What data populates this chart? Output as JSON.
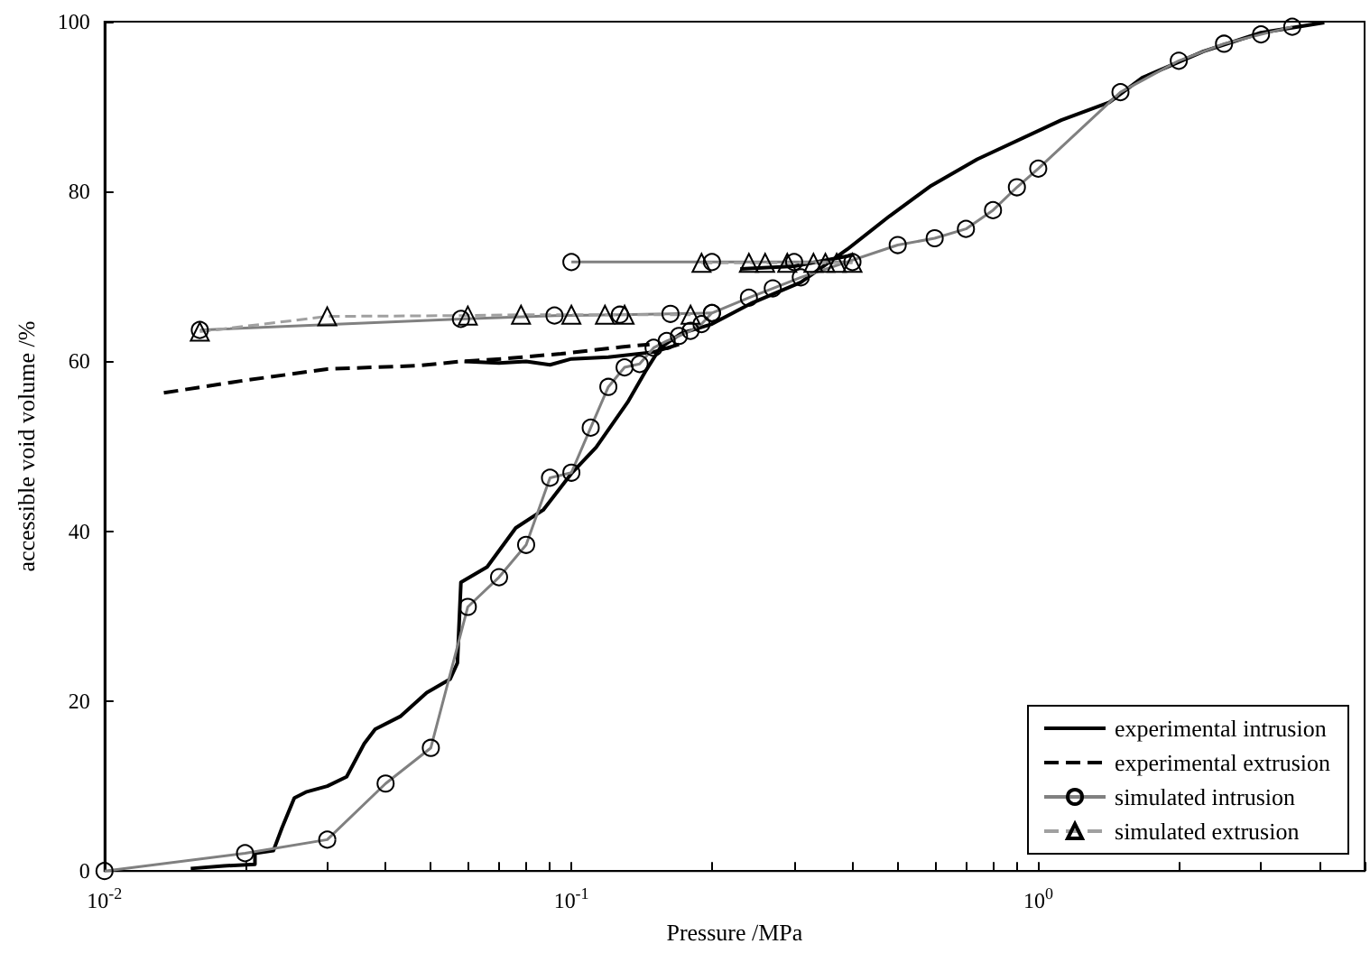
{
  "chart_data": {
    "type": "line",
    "xlabel": "Pressure /MPa",
    "ylabel": "accessible void volume /%",
    "log": "x",
    "grid": false,
    "legend": "bottom right",
    "xlim": [
      0.01,
      5
    ],
    "ylim": [
      0,
      100
    ],
    "xticks": [
      {
        "value": 0.01,
        "label": "10$^{-2}$"
      },
      {
        "value": 0.02,
        "label": null
      },
      {
        "value": 0.03,
        "label": null
      },
      {
        "value": 0.04,
        "label": null
      },
      {
        "value": 0.05,
        "label": null
      },
      {
        "value": 0.06,
        "label": null
      },
      {
        "value": 0.07,
        "label": null
      },
      {
        "value": 0.08,
        "label": null
      },
      {
        "value": 0.09,
        "label": null
      },
      {
        "value": 0.1,
        "label": "10$^{-1}$"
      },
      {
        "value": 0.2,
        "label": null
      },
      {
        "value": 0.3,
        "label": null
      },
      {
        "value": 0.4,
        "label": null
      },
      {
        "value": 0.5,
        "label": null
      },
      {
        "value": 0.6,
        "label": null
      },
      {
        "value": 0.7,
        "label": null
      },
      {
        "value": 0.8,
        "label": null
      },
      {
        "value": 0.9,
        "label": null
      },
      {
        "value": 1,
        "label": "10$^{0}$"
      },
      {
        "value": 2,
        "label": null
      },
      {
        "value": 3,
        "label": null
      },
      {
        "value": 4,
        "label": null
      },
      {
        "value": 5,
        "label": null
      }
    ],
    "yticks": [
      0,
      20,
      40,
      60,
      80,
      100
    ],
    "series": [
      {
        "name": "experimental intrusion",
        "color": "#000000",
        "marker": "none",
        "line_style": "solid",
        "x": [
          0.0153,
          0.018,
          0.021,
          0.021,
          0.023,
          0.024,
          0.0255,
          0.027,
          0.03,
          0.033,
          0.036,
          0.038,
          0.043,
          0.049,
          0.055,
          0.057,
          0.058,
          0.066,
          0.076,
          0.087,
          0.1,
          0.113,
          0.132,
          0.144,
          0.155,
          0.172,
          0.2,
          0.244,
          0.31,
          0.39,
          0.48,
          0.59,
          0.74,
          1.12,
          1.42,
          1.67,
          2.26,
          3.0,
          4.1,
          null,
          0.059,
          0.07,
          0.08,
          0.09,
          0.1,
          0.12,
          0.15,
          0.17,
          null,
          0.23,
          0.3,
          0.4
        ],
        "values": [
          0.3,
          0.6,
          0.8,
          2.1,
          2.4,
          5.1,
          8.6,
          9.3,
          10.0,
          11.1,
          15.0,
          16.7,
          18.2,
          21.0,
          22.6,
          24.5,
          34.0,
          35.8,
          40.4,
          42.5,
          46.8,
          49.9,
          55.2,
          58.8,
          61.6,
          63.3,
          64.4,
          66.9,
          69.3,
          73.2,
          77.1,
          80.7,
          83.8,
          88.4,
          90.5,
          93.4,
          96.5,
          98.7,
          99.9,
          null,
          60.0,
          59.8,
          60.0,
          59.6,
          60.3,
          60.5,
          61.1,
          62.0,
          null,
          70.9,
          71.2,
          72.5
        ]
      },
      {
        "name": "experimental extrusion",
        "color": "#000000",
        "marker": "none",
        "line_style": "dashed",
        "x": [
          0.0134,
          0.0196,
          0.03,
          0.047,
          0.058,
          0.071,
          0.095,
          0.128,
          0.147
        ],
        "values": [
          56.3,
          57.7,
          59.1,
          59.5,
          60.0,
          60.3,
          60.9,
          61.7,
          62.0
        ]
      },
      {
        "name": "simulated intrusion",
        "color": "#808080",
        "marker": "circle",
        "line_style": "solid",
        "x": [
          0.01,
          0.02,
          0.03,
          0.04,
          0.05,
          0.06,
          0.07,
          0.08,
          0.09,
          0.1,
          0.11,
          0.12,
          0.13,
          0.14,
          0.15,
          0.16,
          0.17,
          0.18,
          0.19,
          0.2,
          0.24,
          0.27,
          0.31,
          0.5,
          0.6,
          0.7,
          0.8,
          0.9,
          1.0,
          1.5,
          2.0,
          2.5,
          3.0,
          3.5,
          null,
          0.1,
          0.2,
          0.3,
          0.4,
          null,
          0.016,
          0.058,
          0.092,
          0.127,
          0.163,
          0.2
        ],
        "values": [
          0,
          2.1,
          3.7,
          10.3,
          14.5,
          31.1,
          34.6,
          38.4,
          46.3,
          46.9,
          52.2,
          57.0,
          59.3,
          59.7,
          61.6,
          62.4,
          63.0,
          63.6,
          64.4,
          65.7,
          67.5,
          68.6,
          69.9,
          73.7,
          74.5,
          75.6,
          77.8,
          80.5,
          82.7,
          91.7,
          95.4,
          97.4,
          98.5,
          99.4,
          null,
          71.7,
          71.7,
          71.7,
          71.7,
          null,
          63.7,
          65.0,
          65.4,
          65.5,
          65.6,
          65.7
        ]
      },
      {
        "name": "simulated extrusion",
        "color": "#a0a0a0",
        "marker": "triangle",
        "line_style": "dashed",
        "x": [
          0.016,
          0.03,
          0.06,
          0.078,
          0.1,
          0.118,
          0.13,
          0.18,
          null,
          0.19,
          0.24,
          0.26,
          0.29,
          0.33,
          0.35,
          0.37,
          0.4
        ],
        "values": [
          63.5,
          65.3,
          65.4,
          65.5,
          65.5,
          65.5,
          65.5,
          65.5,
          null,
          71.6,
          71.6,
          71.6,
          71.6,
          71.6,
          71.6,
          71.6,
          71.6
        ]
      }
    ]
  }
}
